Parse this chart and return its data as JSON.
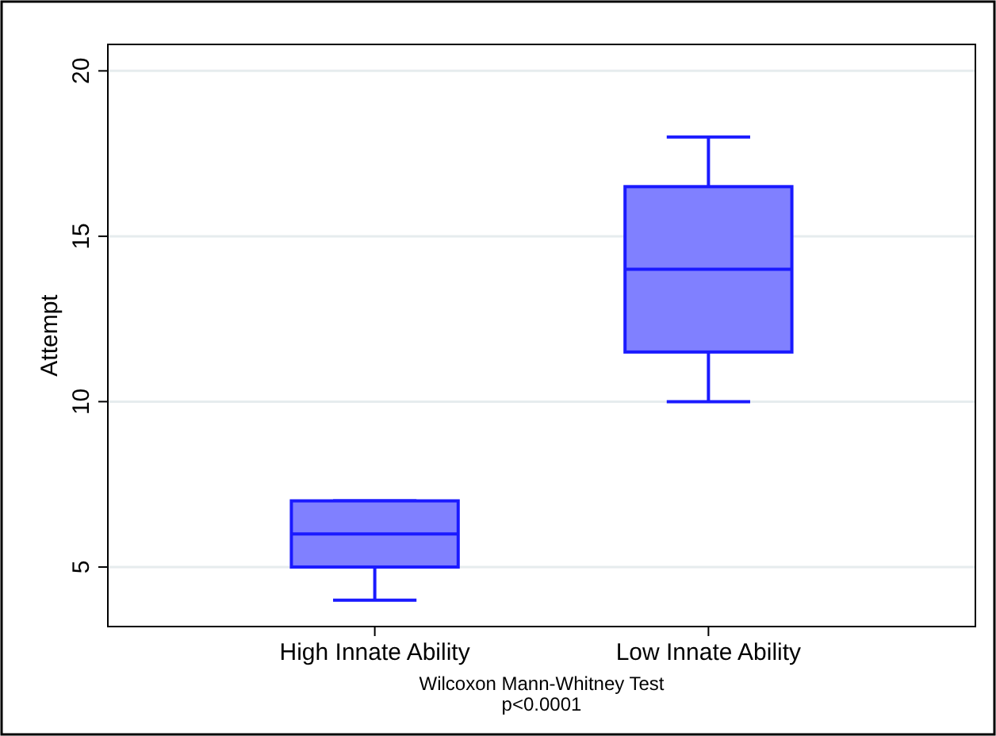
{
  "chart_data": {
    "type": "box",
    "ylabel": "Attempt",
    "categories": [
      "High Innate Ability",
      "Low Innate Ability"
    ],
    "boxes": [
      {
        "low": 4,
        "q1": 5,
        "median": 6,
        "q3": 7,
        "high": 7
      },
      {
        "low": 10,
        "q1": 11.5,
        "median": 14,
        "q3": 16.5,
        "high": 18
      }
    ],
    "color": "#8080ff",
    "ylim": [
      3.2,
      20.8
    ],
    "yticks": [
      5,
      10,
      15,
      20
    ],
    "grid": "y",
    "annotations": [
      "Wilcoxon Mann-Whitney Test",
      "p<0.0001"
    ]
  }
}
